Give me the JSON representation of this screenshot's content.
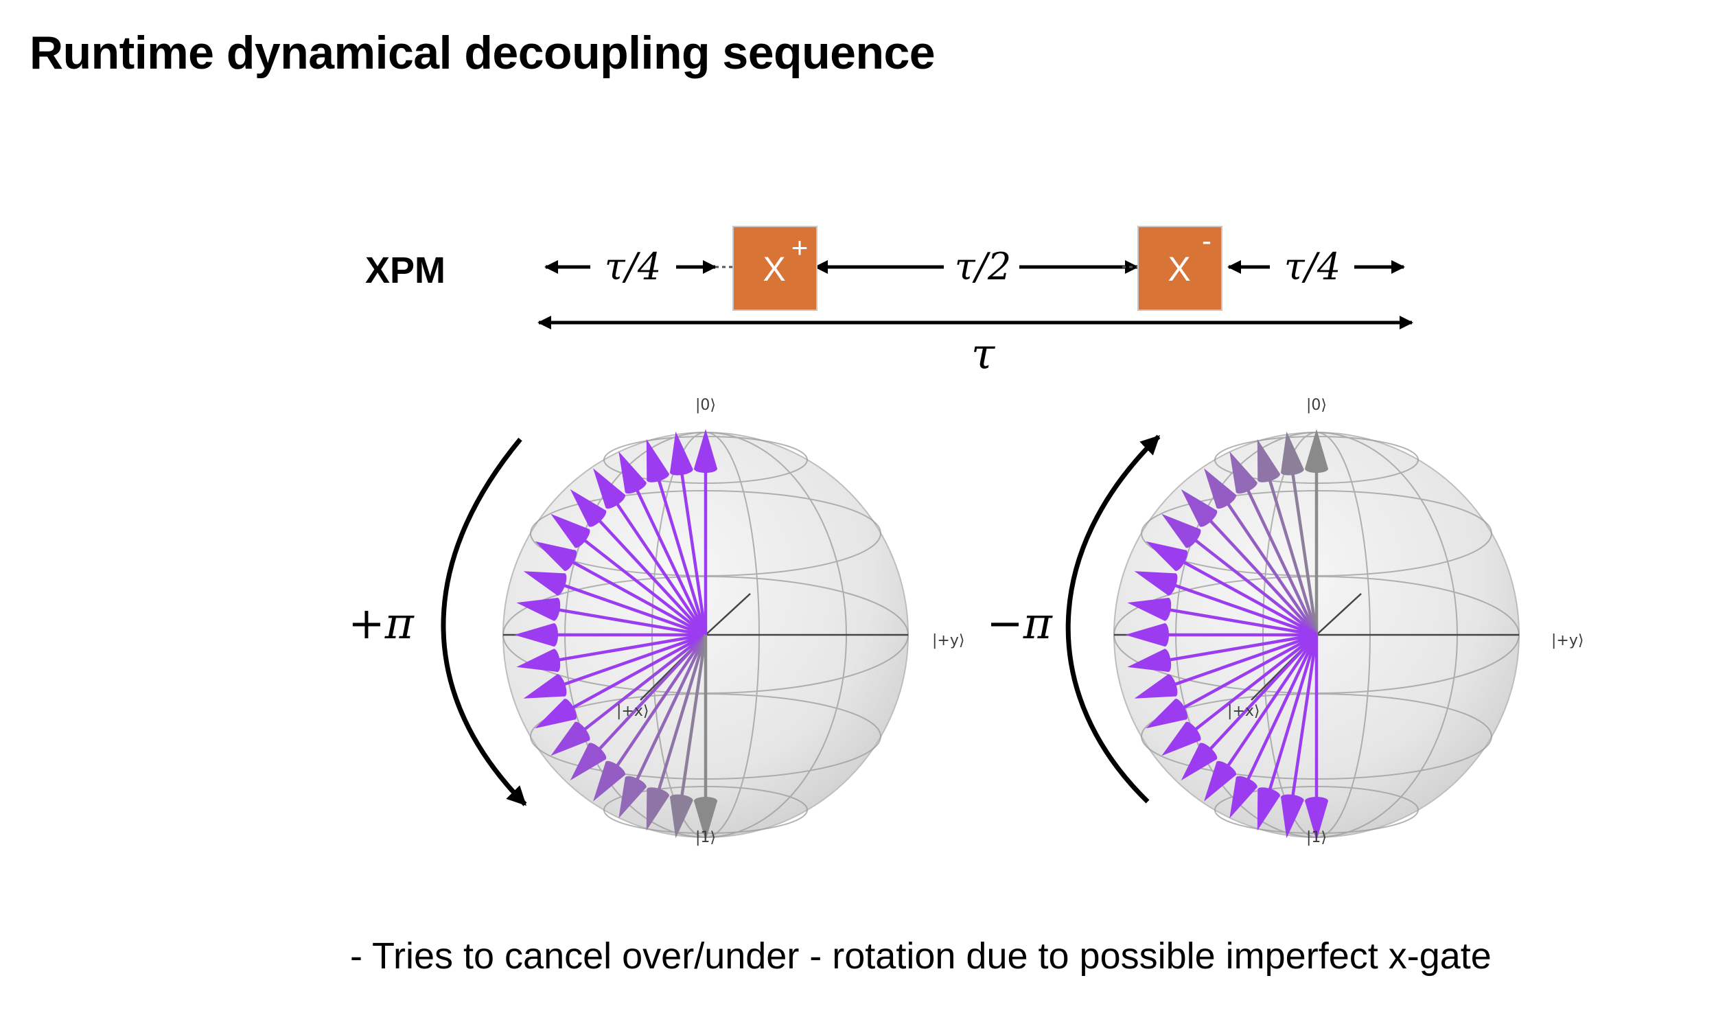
{
  "title": "Runtime dynamical decoupling sequence",
  "sequence": {
    "name": "XPM",
    "gates": [
      {
        "symbol": "X",
        "sign": "+",
        "color": "#d97437"
      },
      {
        "symbol": "X",
        "sign": "-",
        "color": "#d97437"
      }
    ],
    "intervals": [
      "τ/4",
      "τ/2",
      "τ/4"
    ],
    "total": "τ"
  },
  "spheres": [
    {
      "rotation_label": "+π",
      "rotation_direction": "clockwise (top to bottom)",
      "state_labels": {
        "zero": "|0⟩",
        "one": "|1⟩",
        "plus_x": "|+x⟩",
        "plus_y": "|+y⟩"
      },
      "arrow_color": "#9b3cf0",
      "faded_color": "#8a8a8a"
    },
    {
      "rotation_label": "−π",
      "rotation_direction": "counter-clockwise (bottom to top)",
      "state_labels": {
        "zero": "|0⟩",
        "one": "|1⟩",
        "plus_x": "|+x⟩",
        "plus_y": "|+y⟩"
      },
      "arrow_color": "#9b3cf0",
      "faded_color": "#8a8a8a"
    }
  ],
  "note": "- Tries to cancel over/under - rotation due to possible imperfect x-gate"
}
